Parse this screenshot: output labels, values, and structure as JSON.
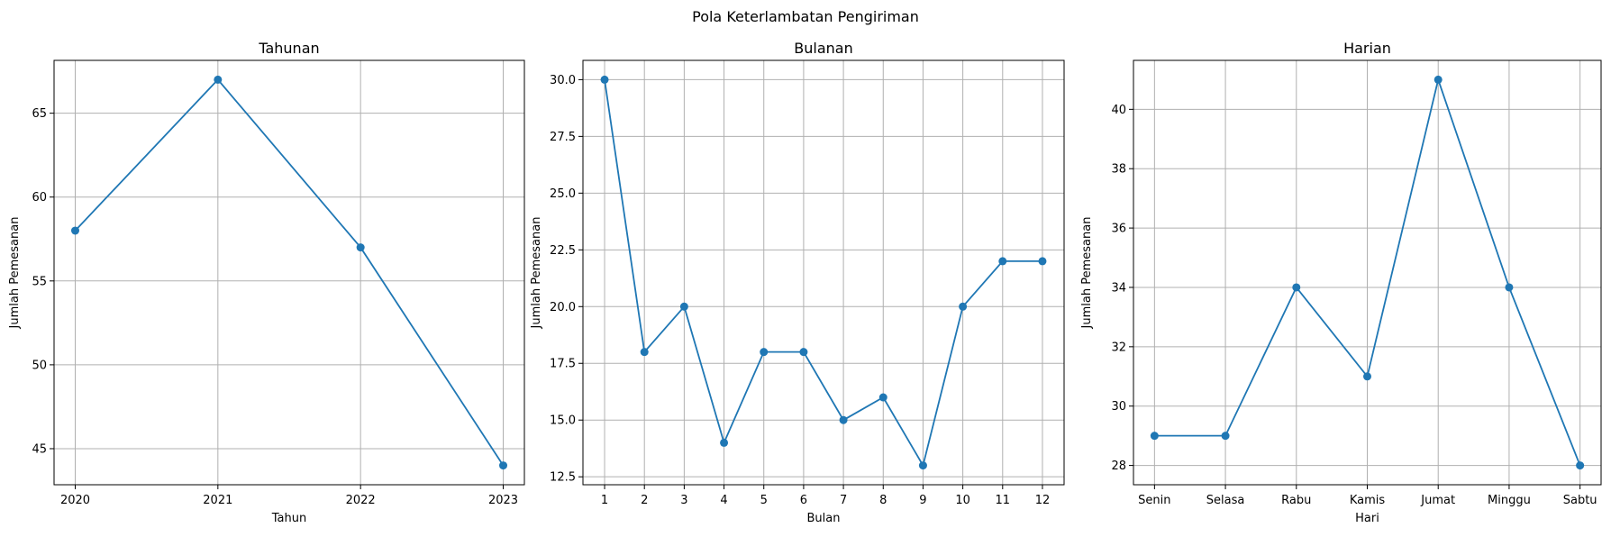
{
  "figure_title": "Pola Keterlambatan Pengiriman",
  "colors": {
    "line": "#1f77b4",
    "grid": "#b0b0b0",
    "axis": "#000000"
  },
  "chart_data": [
    {
      "type": "line",
      "title": "Tahunan",
      "xlabel": "Tahun",
      "ylabel": "Jumlah Pemesanan",
      "categories": [
        "2020",
        "2021",
        "2022",
        "2023"
      ],
      "values": [
        58,
        67,
        57,
        44
      ],
      "ylim": [
        42.85,
        68.15
      ],
      "yticks": [
        45,
        50,
        55,
        60,
        65
      ],
      "grid": true,
      "marker": "circle"
    },
    {
      "type": "line",
      "title": "Bulanan",
      "xlabel": "Bulan",
      "ylabel": "Jumlah Pemesanan",
      "categories": [
        "1",
        "2",
        "3",
        "4",
        "5",
        "6",
        "7",
        "8",
        "9",
        "10",
        "11",
        "12"
      ],
      "values": [
        30,
        18,
        20,
        14,
        18,
        18,
        15,
        16,
        13,
        20,
        22,
        22
      ],
      "ylim": [
        12.15,
        30.85
      ],
      "yticks": [
        "12.5",
        "15.0",
        "17.5",
        "20.0",
        "22.5",
        "25.0",
        "27.5",
        "30.0"
      ],
      "grid": true,
      "marker": "circle"
    },
    {
      "type": "line",
      "title": "Harian",
      "xlabel": "Hari",
      "ylabel": "Jumlah Pemesanan",
      "categories": [
        "Senin",
        "Selasa",
        "Rabu",
        "Kamis",
        "Jumat",
        "Minggu",
        "Sabtu"
      ],
      "values": [
        29,
        29,
        34,
        31,
        41,
        34,
        28
      ],
      "ylim": [
        27.35,
        41.65
      ],
      "yticks": [
        28,
        30,
        32,
        34,
        36,
        38,
        40
      ],
      "grid": true,
      "marker": "circle"
    }
  ]
}
